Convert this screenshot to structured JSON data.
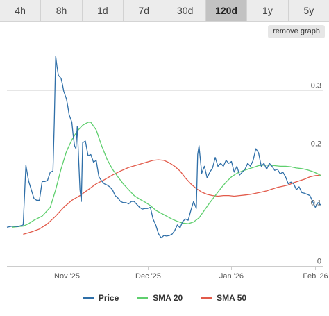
{
  "tabs": [
    {
      "label": "4h",
      "active": false
    },
    {
      "label": "8h",
      "active": false
    },
    {
      "label": "1d",
      "active": false
    },
    {
      "label": "7d",
      "active": false
    },
    {
      "label": "30d",
      "active": false
    },
    {
      "label": "120d",
      "active": true
    },
    {
      "label": "1y",
      "active": false
    },
    {
      "label": "5y",
      "active": false
    }
  ],
  "remove_graph_label": "remove graph",
  "chart_data": {
    "type": "line",
    "x_axis": {
      "ticks": [
        "Nov '25",
        "Dec '25",
        "Jan '26",
        "Feb '26"
      ],
      "tick_days": [
        22,
        52,
        83,
        114
      ],
      "range_days": [
        0,
        117
      ]
    },
    "y_axis": {
      "ticks": [
        "0",
        "0.1",
        "0.2",
        "0.3"
      ],
      "tick_values": [
        0,
        0.1,
        0.2,
        0.3
      ],
      "ylim": [
        0,
        0.38
      ],
      "grid": true
    },
    "legend_position": "bottom",
    "series": [
      {
        "name": "Price",
        "color": "#2f6fa8",
        "points": [
          [
            0,
            0.066
          ],
          [
            2,
            0.068
          ],
          [
            4,
            0.067
          ],
          [
            6,
            0.07
          ],
          [
            7,
            0.172
          ],
          [
            8,
            0.145
          ],
          [
            9,
            0.13
          ],
          [
            10,
            0.115
          ],
          [
            11,
            0.112
          ],
          [
            12,
            0.112
          ],
          [
            13,
            0.144
          ],
          [
            14,
            0.144
          ],
          [
            15,
            0.146
          ],
          [
            16,
            0.16
          ],
          [
            17,
            0.162
          ],
          [
            17.5,
            0.245
          ],
          [
            18,
            0.358
          ],
          [
            18.5,
            0.34
          ],
          [
            19,
            0.325
          ],
          [
            20,
            0.32
          ],
          [
            20.5,
            0.31
          ],
          [
            21,
            0.298
          ],
          [
            22,
            0.285
          ],
          [
            22.5,
            0.272
          ],
          [
            23,
            0.258
          ],
          [
            24,
            0.245
          ],
          [
            24.5,
            0.222
          ],
          [
            25,
            0.205
          ],
          [
            25.5,
            0.2
          ],
          [
            26,
            0.238
          ],
          [
            27,
            0.13
          ],
          [
            27.5,
            0.11
          ],
          [
            28,
            0.21
          ],
          [
            29,
            0.213
          ],
          [
            30,
            0.188
          ],
          [
            31,
            0.19
          ],
          [
            32,
            0.177
          ],
          [
            33,
            0.18
          ],
          [
            34,
            0.152
          ],
          [
            35,
            0.145
          ],
          [
            36,
            0.14
          ],
          [
            37,
            0.138
          ],
          [
            38,
            0.135
          ],
          [
            39,
            0.13
          ],
          [
            40,
            0.12
          ],
          [
            41,
            0.116
          ],
          [
            42,
            0.11
          ],
          [
            43,
            0.108
          ],
          [
            44,
            0.108
          ],
          [
            45,
            0.106
          ],
          [
            46,
            0.11
          ],
          [
            47,
            0.11
          ],
          [
            48,
            0.105
          ],
          [
            49,
            0.1
          ],
          [
            50,
            0.097
          ],
          [
            51,
            0.098
          ],
          [
            52,
            0.098
          ],
          [
            53,
            0.1
          ],
          [
            54,
            0.08
          ],
          [
            55,
            0.07
          ],
          [
            56,
            0.055
          ],
          [
            57,
            0.048
          ],
          [
            58,
            0.052
          ],
          [
            59,
            0.051
          ],
          [
            60,
            0.052
          ],
          [
            61,
            0.054
          ],
          [
            62,
            0.06
          ],
          [
            63,
            0.07
          ],
          [
            64,
            0.065
          ],
          [
            65,
            0.076
          ],
          [
            66,
            0.08
          ],
          [
            67,
            0.078
          ],
          [
            68,
            0.095
          ],
          [
            69,
            0.11
          ],
          [
            70,
            0.098
          ],
          [
            70.5,
            0.19
          ],
          [
            71,
            0.205
          ],
          [
            72,
            0.158
          ],
          [
            73,
            0.17
          ],
          [
            74,
            0.15
          ],
          [
            75,
            0.16
          ],
          [
            76,
            0.167
          ],
          [
            77,
            0.185
          ],
          [
            78,
            0.17
          ],
          [
            79,
            0.175
          ],
          [
            80,
            0.17
          ],
          [
            81,
            0.18
          ],
          [
            82,
            0.175
          ],
          [
            83,
            0.178
          ],
          [
            84,
            0.16
          ],
          [
            85,
            0.17
          ],
          [
            86,
            0.155
          ],
          [
            87,
            0.16
          ],
          [
            88,
            0.165
          ],
          [
            89,
            0.175
          ],
          [
            90,
            0.17
          ],
          [
            91,
            0.18
          ],
          [
            92,
            0.2
          ],
          [
            93,
            0.193
          ],
          [
            94,
            0.17
          ],
          [
            95,
            0.175
          ],
          [
            96,
            0.165
          ],
          [
            97,
            0.175
          ],
          [
            98,
            0.17
          ],
          [
            99,
            0.163
          ],
          [
            100,
            0.165
          ],
          [
            101,
            0.157
          ],
          [
            102,
            0.16
          ],
          [
            103,
            0.152
          ],
          [
            104,
            0.14
          ],
          [
            105,
            0.143
          ],
          [
            106,
            0.14
          ],
          [
            107,
            0.13
          ],
          [
            108,
            0.135
          ],
          [
            109,
            0.125
          ],
          [
            110,
            0.124
          ],
          [
            111,
            0.122
          ],
          [
            112,
            0.12
          ],
          [
            113,
            0.11
          ],
          [
            114,
            0.1
          ],
          [
            115,
            0.108
          ],
          [
            116,
            0.104
          ]
        ]
      },
      {
        "name": "SMA 20",
        "color": "#5fcf6e",
        "points": [
          [
            2,
            0.066
          ],
          [
            6,
            0.068
          ],
          [
            8,
            0.072
          ],
          [
            10,
            0.078
          ],
          [
            13,
            0.085
          ],
          [
            16,
            0.1
          ],
          [
            18,
            0.13
          ],
          [
            20,
            0.165
          ],
          [
            22,
            0.195
          ],
          [
            24,
            0.215
          ],
          [
            26,
            0.23
          ],
          [
            28,
            0.24
          ],
          [
            30,
            0.245
          ],
          [
            31,
            0.245
          ],
          [
            33,
            0.232
          ],
          [
            35,
            0.205
          ],
          [
            37,
            0.182
          ],
          [
            39,
            0.165
          ],
          [
            41,
            0.152
          ],
          [
            43,
            0.14
          ],
          [
            45,
            0.13
          ],
          [
            47,
            0.12
          ],
          [
            49,
            0.114
          ],
          [
            51,
            0.109
          ],
          [
            53,
            0.103
          ],
          [
            55,
            0.095
          ],
          [
            57,
            0.09
          ],
          [
            59,
            0.085
          ],
          [
            61,
            0.08
          ],
          [
            63,
            0.076
          ],
          [
            65,
            0.073
          ],
          [
            67,
            0.072
          ],
          [
            69,
            0.075
          ],
          [
            71,
            0.082
          ],
          [
            73,
            0.095
          ],
          [
            75,
            0.108
          ],
          [
            77,
            0.12
          ],
          [
            79,
            0.132
          ],
          [
            81,
            0.143
          ],
          [
            83,
            0.152
          ],
          [
            85,
            0.158
          ],
          [
            87,
            0.162
          ],
          [
            89,
            0.165
          ],
          [
            91,
            0.168
          ],
          [
            93,
            0.171
          ],
          [
            95,
            0.172
          ],
          [
            97,
            0.172
          ],
          [
            99,
            0.171
          ],
          [
            101,
            0.17
          ],
          [
            103,
            0.17
          ],
          [
            105,
            0.169
          ],
          [
            107,
            0.167
          ],
          [
            109,
            0.166
          ],
          [
            111,
            0.164
          ],
          [
            113,
            0.161
          ],
          [
            115,
            0.157
          ],
          [
            116,
            0.154
          ]
        ]
      },
      {
        "name": "SMA 50",
        "color": "#e25a4a",
        "points": [
          [
            6,
            0.054
          ],
          [
            9,
            0.058
          ],
          [
            12,
            0.063
          ],
          [
            15,
            0.072
          ],
          [
            18,
            0.085
          ],
          [
            21,
            0.1
          ],
          [
            24,
            0.112
          ],
          [
            27,
            0.12
          ],
          [
            30,
            0.13
          ],
          [
            33,
            0.14
          ],
          [
            36,
            0.147
          ],
          [
            39,
            0.155
          ],
          [
            42,
            0.162
          ],
          [
            45,
            0.168
          ],
          [
            48,
            0.172
          ],
          [
            51,
            0.176
          ],
          [
            54,
            0.18
          ],
          [
            56,
            0.181
          ],
          [
            58,
            0.18
          ],
          [
            60,
            0.176
          ],
          [
            62,
            0.17
          ],
          [
            64,
            0.162
          ],
          [
            66,
            0.15
          ],
          [
            68,
            0.14
          ],
          [
            70,
            0.132
          ],
          [
            72,
            0.126
          ],
          [
            74,
            0.122
          ],
          [
            76,
            0.12
          ],
          [
            78,
            0.119
          ],
          [
            80,
            0.12
          ],
          [
            82,
            0.12
          ],
          [
            84,
            0.119
          ],
          [
            86,
            0.12
          ],
          [
            88,
            0.121
          ],
          [
            90,
            0.122
          ],
          [
            92,
            0.124
          ],
          [
            94,
            0.126
          ],
          [
            96,
            0.128
          ],
          [
            98,
            0.131
          ],
          [
            100,
            0.134
          ],
          [
            102,
            0.136
          ],
          [
            104,
            0.138
          ],
          [
            106,
            0.142
          ],
          [
            108,
            0.145
          ],
          [
            110,
            0.148
          ],
          [
            112,
            0.152
          ],
          [
            114,
            0.154
          ],
          [
            116,
            0.155
          ]
        ]
      }
    ]
  }
}
